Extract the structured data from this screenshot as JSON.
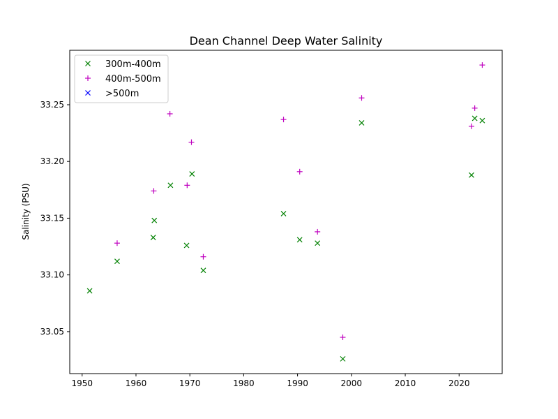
{
  "chart_data": {
    "type": "scatter",
    "title": "Dean Channel Deep Water Salinity",
    "xlabel": "",
    "ylabel": "Salinity (PSU)",
    "xlim": [
      1947.7,
      2028.0
    ],
    "ylim": [
      33.013,
      33.298
    ],
    "xticks": [
      1950,
      1960,
      1970,
      1980,
      1990,
      2000,
      2010,
      2020
    ],
    "xtick_labels": [
      "1950",
      "1960",
      "1970",
      "1980",
      "1990",
      "2000",
      "2010",
      "2020"
    ],
    "yticks": [
      33.05,
      33.1,
      33.15,
      33.2,
      33.25
    ],
    "ytick_labels": [
      "33.05",
      "33.10",
      "33.15",
      "33.20",
      "33.25"
    ],
    "grid": false,
    "legend_position": "top-left",
    "series": [
      {
        "name": "300m-400m",
        "marker": "x",
        "color": "#008000",
        "points": [
          [
            1951.4,
            33.086
          ],
          [
            1956.5,
            33.112
          ],
          [
            1963.2,
            33.133
          ],
          [
            1963.4,
            33.148
          ],
          [
            1966.4,
            33.179
          ],
          [
            1969.4,
            33.126
          ],
          [
            1970.4,
            33.189
          ],
          [
            1972.5,
            33.104
          ],
          [
            1987.4,
            33.154
          ],
          [
            1990.4,
            33.131
          ],
          [
            1993.7,
            33.128
          ],
          [
            1998.4,
            33.026
          ],
          [
            2001.9,
            33.234
          ],
          [
            2022.3,
            33.188
          ],
          [
            2022.9,
            33.238
          ],
          [
            2024.3,
            33.236
          ]
        ]
      },
      {
        "name": "400m-500m",
        "marker": "+",
        "color": "#bf00bf",
        "points": [
          [
            1956.5,
            33.128
          ],
          [
            1963.3,
            33.174
          ],
          [
            1966.3,
            33.242
          ],
          [
            1969.5,
            33.179
          ],
          [
            1970.3,
            33.217
          ],
          [
            1972.5,
            33.116
          ],
          [
            1987.4,
            33.237
          ],
          [
            1990.4,
            33.191
          ],
          [
            1993.7,
            33.138
          ],
          [
            1998.4,
            33.045
          ],
          [
            2001.9,
            33.256
          ],
          [
            2022.3,
            33.231
          ],
          [
            2022.9,
            33.247
          ],
          [
            2024.3,
            33.285
          ]
        ]
      },
      {
        "name": ">500m",
        "marker": "x",
        "color": "#0000ff",
        "points": []
      }
    ]
  }
}
